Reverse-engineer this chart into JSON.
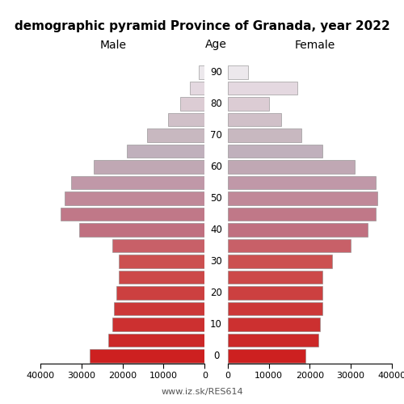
{
  "title": "demographic pyramid Province of Granada, year 2022",
  "label_male": "Male",
  "label_female": "Female",
  "label_age": "Age",
  "footer": "www.iz.sk/RES614",
  "age_groups": [
    0,
    5,
    10,
    15,
    20,
    25,
    30,
    35,
    40,
    45,
    50,
    55,
    60,
    65,
    70,
    75,
    80,
    85,
    90
  ],
  "male_values": [
    28000,
    23500,
    22500,
    22000,
    21500,
    21000,
    21000,
    22500,
    30500,
    35000,
    34000,
    32500,
    27000,
    19000,
    14000,
    9000,
    6000,
    3500,
    1500
  ],
  "female_values": [
    19000,
    22000,
    22500,
    23000,
    23000,
    23000,
    25500,
    30000,
    34000,
    36000,
    36500,
    36000,
    31000,
    23000,
    18000,
    13000,
    10000,
    17000,
    5000
  ],
  "colors": [
    "#cd2020",
    "#cc2828",
    "#cc3030",
    "#cc3838",
    "#cc4040",
    "#cc4848",
    "#cc5050",
    "#c86068",
    "#c07080",
    "#c07888",
    "#c08898",
    "#c098a8",
    "#c0a8b4",
    "#c0b0bc",
    "#c8b8c0",
    "#d0c0c8",
    "#dcccd4",
    "#e4d8e0",
    "#ece8ec"
  ],
  "xlim": 40000,
  "bar_height": 0.85,
  "bg_color": "#ffffff",
  "edge_color": "#888888",
  "edge_lw": 0.4,
  "title_fontsize": 11,
  "label_fontsize": 10,
  "tick_fontsize": 8,
  "age_label_fontsize": 8.5
}
